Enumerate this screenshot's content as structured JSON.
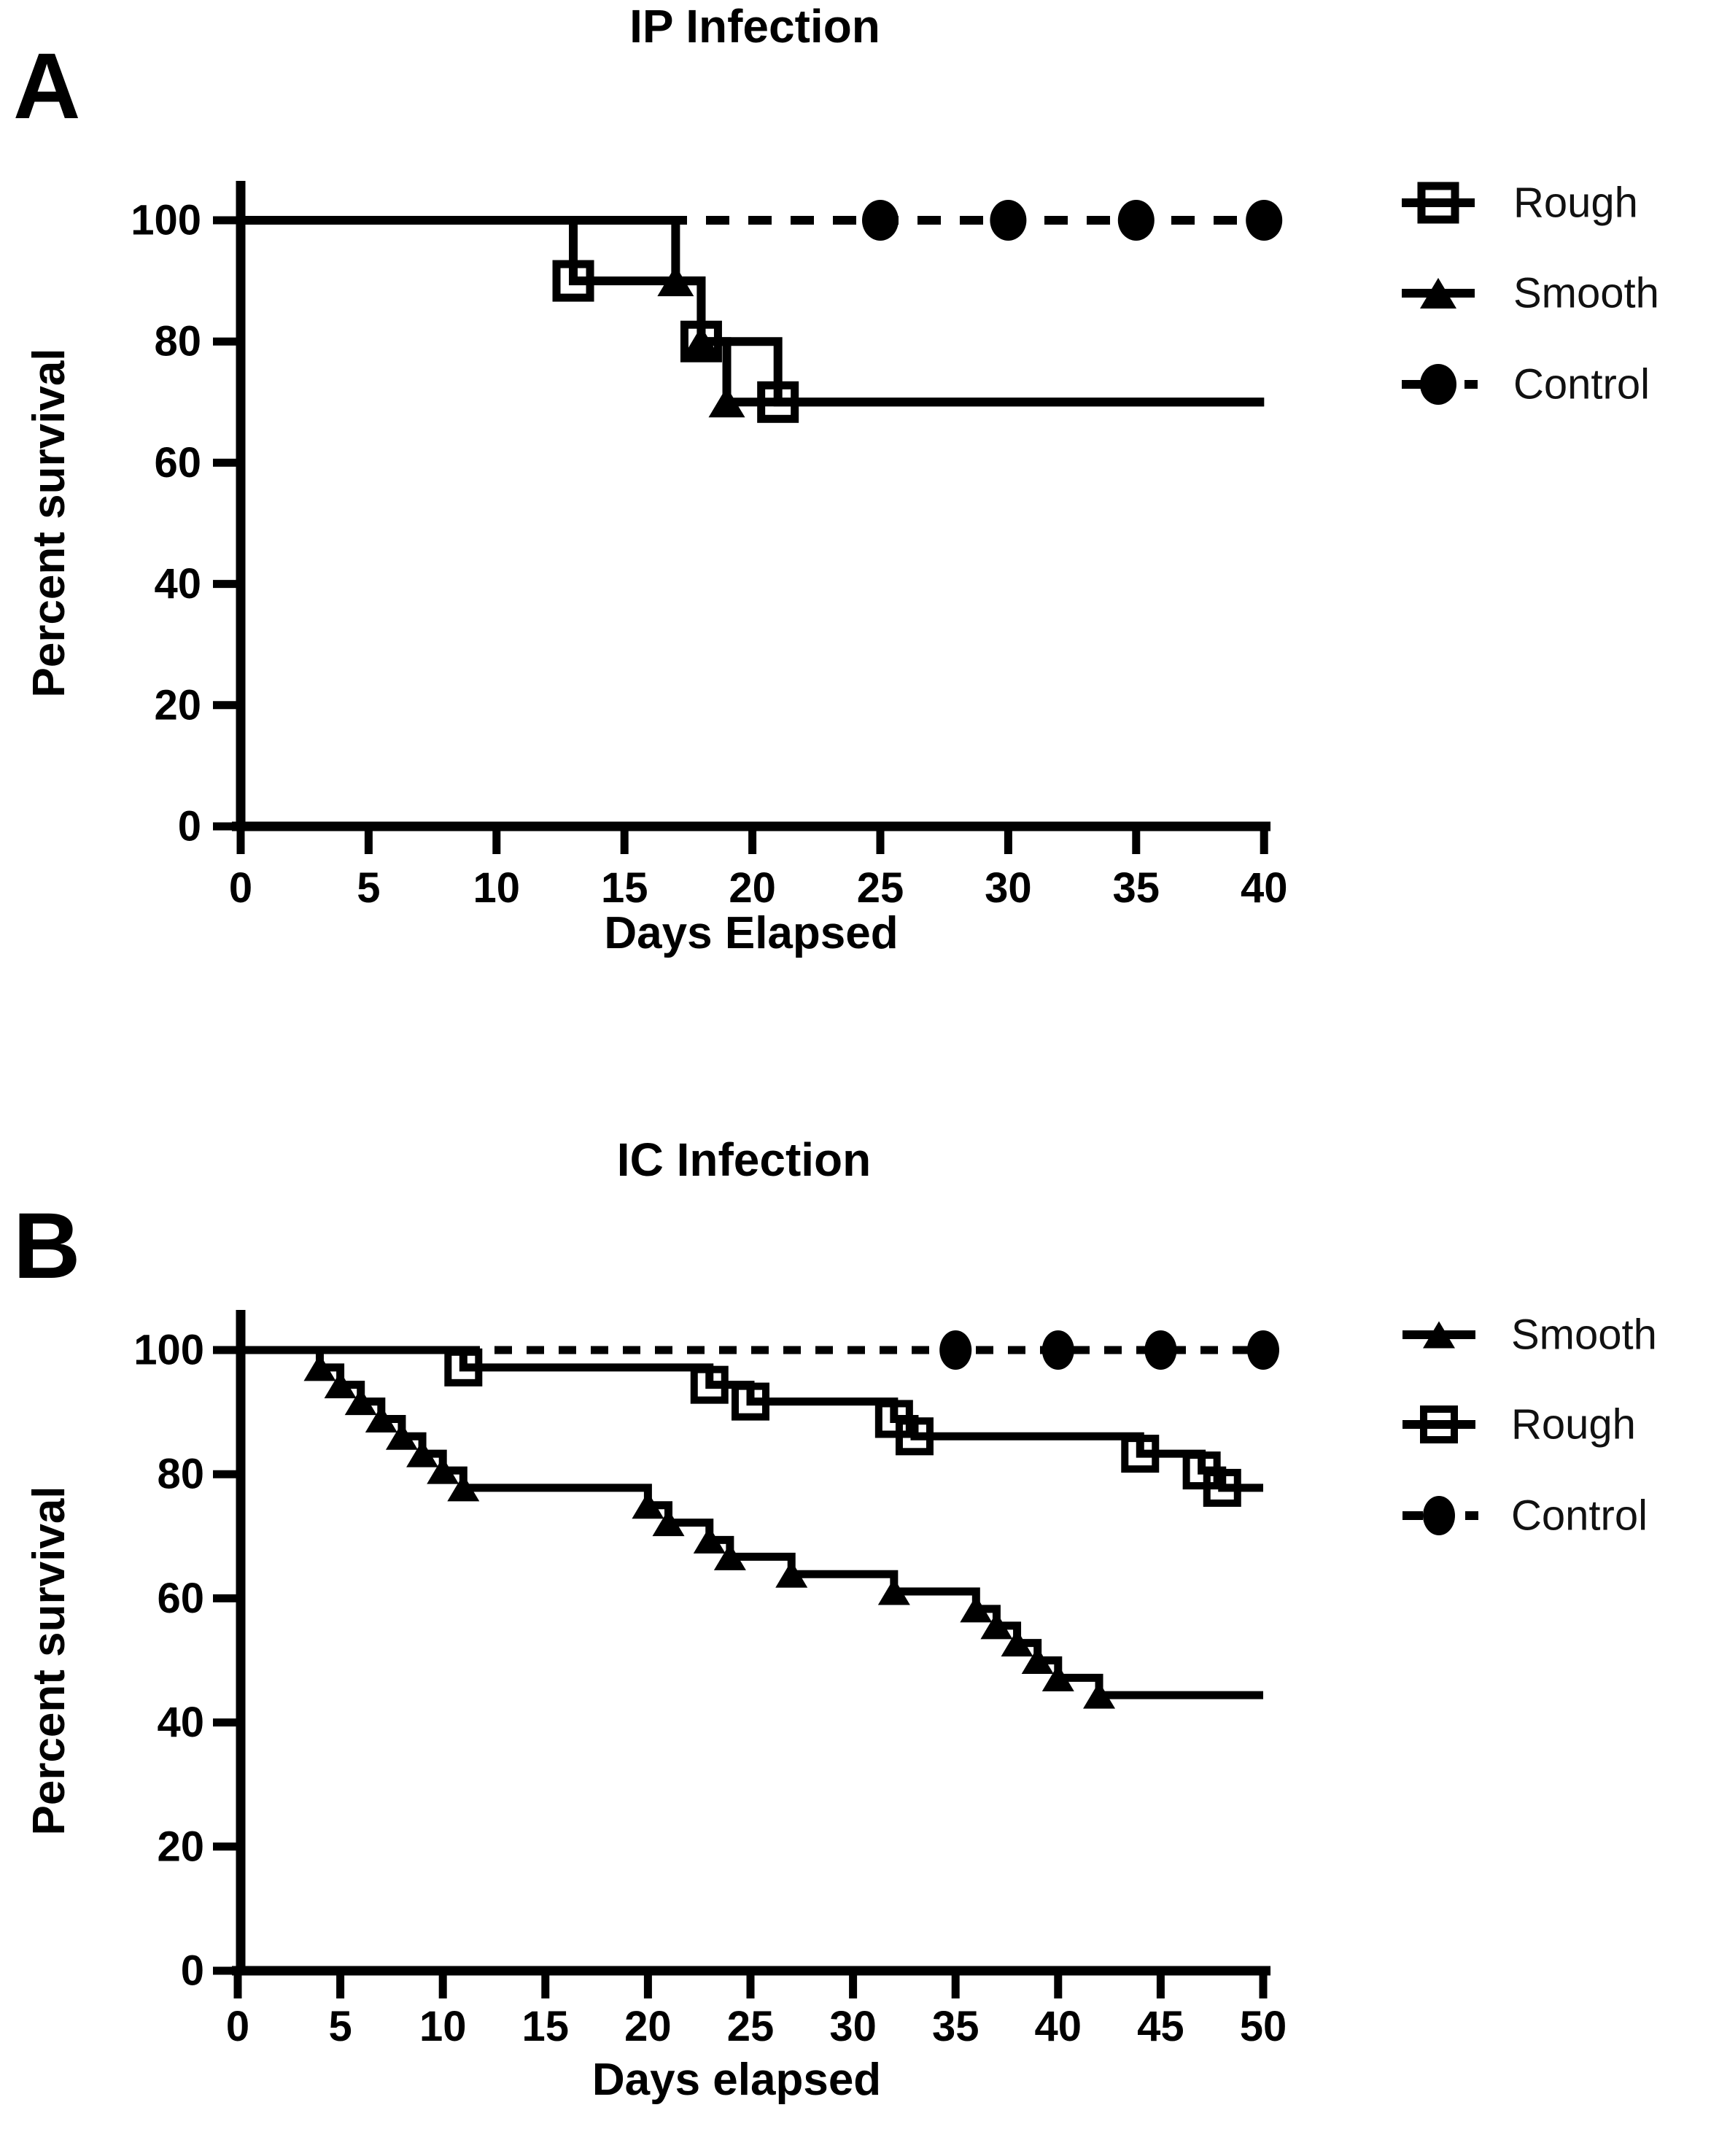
{
  "figure": {
    "background": "#ffffff",
    "ink": "#000000",
    "panels": [
      {
        "letter": "A"
      },
      {
        "letter": "B"
      }
    ]
  },
  "chart_data": [
    {
      "id": "panel-a",
      "type": "line",
      "chart_style": "kaplan-meier-survival-step",
      "title": "IP Infection",
      "xlabel": "Days Elapsed",
      "ylabel": "Percent survival",
      "xlim": [
        0,
        40
      ],
      "ylim": [
        0,
        100
      ],
      "x_ticks": [
        0,
        5,
        10,
        15,
        20,
        25,
        30,
        35,
        40
      ],
      "y_ticks": [
        0,
        20,
        40,
        60,
        80,
        100
      ],
      "grid": false,
      "legend_position": "right-of-plot",
      "series": [
        {
          "name": "Rough",
          "marker": "open-square",
          "line": "solid",
          "start_level": 100,
          "end_day": 40,
          "drops": [
            [
              13,
              90
            ],
            [
              18,
              80
            ],
            [
              21,
              70
            ]
          ],
          "markers": [
            [
              13,
              90
            ],
            [
              18,
              80
            ],
            [
              21,
              70
            ]
          ]
        },
        {
          "name": "Smooth",
          "marker": "filled-triangle",
          "line": "solid",
          "start_level": 100,
          "end_day": 40,
          "drops": [
            [
              17,
              90
            ],
            [
              18,
              80
            ],
            [
              19,
              70
            ]
          ],
          "markers": [
            [
              17,
              90
            ],
            [
              18,
              80
            ],
            [
              19,
              70
            ]
          ]
        },
        {
          "name": "Control",
          "marker": "filled-circle",
          "line": "dashed",
          "start_level": 100,
          "end_day": 40,
          "drops": [],
          "markers": [
            [
              25,
              100
            ],
            [
              30,
              100
            ],
            [
              35,
              100
            ],
            [
              40,
              100
            ]
          ]
        }
      ],
      "legend": [
        {
          "label": "Rough",
          "marker": "open-square",
          "line": "solid"
        },
        {
          "label": "Smooth",
          "marker": "filled-triangle",
          "line": "solid"
        },
        {
          "label": "Control",
          "marker": "filled-circle",
          "line": "dash-right"
        }
      ]
    },
    {
      "id": "panel-b",
      "type": "line",
      "chart_style": "kaplan-meier-survival-step",
      "title": "IC Infection",
      "xlabel": "Days elapsed",
      "ylabel": "Percent survival",
      "xlim": [
        0,
        50
      ],
      "ylim": [
        0,
        100
      ],
      "x_ticks": [
        0,
        5,
        10,
        15,
        20,
        25,
        30,
        35,
        40,
        45,
        50
      ],
      "y_ticks": [
        0,
        20,
        40,
        60,
        80,
        100
      ],
      "grid": false,
      "legend_position": "right-of-plot",
      "series": [
        {
          "name": "Smooth",
          "marker": "filled-triangle",
          "line": "solid",
          "start_level": 100,
          "end_day": 50,
          "drops": [
            [
              4,
              97.2
            ],
            [
              5,
              94.4
            ],
            [
              6,
              91.7
            ],
            [
              7,
              88.9
            ],
            [
              8,
              86.1
            ],
            [
              9,
              83.3
            ],
            [
              10,
              80.6
            ],
            [
              11,
              77.8
            ],
            [
              20,
              75.0
            ],
            [
              21,
              72.2
            ],
            [
              23,
              69.4
            ],
            [
              24,
              66.7
            ],
            [
              27,
              63.9
            ],
            [
              32,
              61.1
            ],
            [
              36,
              58.3
            ],
            [
              37,
              55.6
            ],
            [
              38,
              52.8
            ],
            [
              39,
              50.0
            ],
            [
              40,
              47.2
            ],
            [
              42,
              44.4
            ]
          ],
          "markers": [
            [
              4,
              97.2
            ],
            [
              5,
              94.4
            ],
            [
              6,
              91.7
            ],
            [
              7,
              88.9
            ],
            [
              8,
              86.1
            ],
            [
              9,
              83.3
            ],
            [
              10,
              80.6
            ],
            [
              11,
              77.8
            ],
            [
              20,
              75.0
            ],
            [
              21,
              72.2
            ],
            [
              23,
              69.4
            ],
            [
              24,
              66.7
            ],
            [
              27,
              63.9
            ],
            [
              32,
              61.1
            ],
            [
              36,
              58.3
            ],
            [
              37,
              55.6
            ],
            [
              38,
              52.8
            ],
            [
              39,
              50.0
            ],
            [
              40,
              47.2
            ],
            [
              42,
              44.4
            ]
          ]
        },
        {
          "name": "Rough",
          "marker": "open-square",
          "line": "solid",
          "start_level": 100,
          "end_day": 50,
          "drops": [
            [
              11,
              97.2
            ],
            [
              23,
              94.4
            ],
            [
              25,
              91.7
            ],
            [
              32,
              88.9
            ],
            [
              33,
              86.1
            ],
            [
              44,
              83.3
            ],
            [
              47,
              80.6
            ],
            [
              48,
              77.8
            ]
          ],
          "markers": [
            [
              11,
              97.2
            ],
            [
              23,
              94.4
            ],
            [
              25,
              91.7
            ],
            [
              32,
              88.9
            ],
            [
              33,
              86.1
            ],
            [
              44,
              83.3
            ],
            [
              47,
              80.6
            ],
            [
              48,
              77.8
            ]
          ]
        },
        {
          "name": "Control",
          "marker": "filled-circle",
          "line": "dashed",
          "start_level": 100,
          "end_day": 50,
          "drops": [],
          "markers": [
            [
              35,
              100
            ],
            [
              40,
              100
            ],
            [
              45,
              100
            ],
            [
              50,
              100
            ]
          ]
        }
      ],
      "legend": [
        {
          "label": "Smooth",
          "marker": "filled-triangle",
          "line": "solid"
        },
        {
          "label": "Rough",
          "marker": "open-square",
          "line": "solid"
        },
        {
          "label": "Control",
          "marker": "filled-circle",
          "line": "dash-right"
        }
      ]
    }
  ]
}
